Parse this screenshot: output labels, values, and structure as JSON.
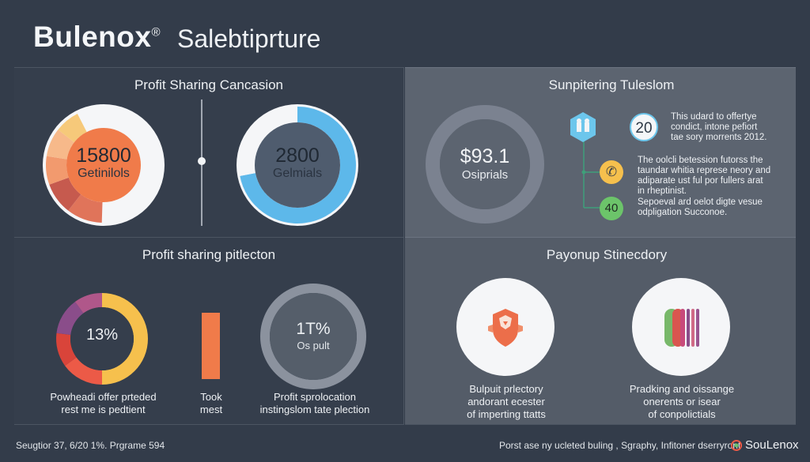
{
  "header": {
    "brand": "Bulenox",
    "registered": "®",
    "subtitle": "Salebtiprture"
  },
  "panels": {
    "profit_sharing_cancasion": {
      "title": "Profit Sharing Cancasion",
      "donut1": {
        "value": "15800",
        "label": "Getinilols"
      },
      "donut2": {
        "value": "2800",
        "label": "Gelmials"
      }
    },
    "sunpitering": {
      "title": "Sunpitering Tuleslom",
      "donut": {
        "value": "$93.1",
        "label": "Osiprials"
      },
      "badge1": {
        "text": "20"
      },
      "badge2": {
        "text": "40"
      },
      "note1": [
        "This udard to offertye",
        "condict, intone pefiort",
        "tae sory morrents 2012."
      ],
      "note2": [
        "The oolcli betession futorss the",
        "taundar whitia represe neory and",
        "adiparate ust ful por fullers arat",
        "in rheptinist."
      ],
      "note3": [
        "Sepoeval ard oelot digte vesue",
        "odpligation Succonoe."
      ]
    },
    "profit_sharing_pitlecton": {
      "title": "Profit sharing pitlecton",
      "donut1": {
        "value": "13%"
      },
      "donut2": {
        "value": "1T%",
        "label": "Os pult"
      },
      "caption1": [
        "Powheadi offer prteded",
        "rest me is pedtient"
      ],
      "caption2": [
        "Took",
        "mest"
      ],
      "caption3": [
        "Profit sprolocation",
        "instingslom tate plection"
      ]
    },
    "payonup": {
      "title": "Payonup Stinecdory",
      "caption1": [
        "Bulpuit prlectory",
        "andorant ecester",
        "of imperting ttatts"
      ],
      "caption2": [
        "Pradking and oissange",
        "onerents or isear",
        "of conpolictials"
      ]
    }
  },
  "footer": {
    "left": "Seugtior 37, 6/20 1%. Prgrame 594",
    "right": "Porst ase ny ucleted buling , Sgraphy, Infitoner dserryront",
    "brand": "SouLenox"
  },
  "colors": {
    "background": "#333c4a",
    "orange": "#f07b4a",
    "blue": "#5db8ea",
    "yellow": "#f6c04d",
    "red": "#ec5a47",
    "purple": "#8a4d8a",
    "gray_ring": "#7b8290"
  },
  "chart_data": [
    {
      "type": "pie",
      "title": "Profit Sharing Cancasion",
      "center_value": "15800",
      "center_label": "Getinilols",
      "series": [
        {
          "values": [
            58,
            10,
            9,
            8,
            8,
            7
          ]
        }
      ]
    },
    {
      "type": "pie",
      "title": "Profit Sharing Cancasion",
      "center_value": "2800",
      "center_label": "Gelmials",
      "series": [
        {
          "values": [
            72,
            28
          ]
        }
      ]
    },
    {
      "type": "pie",
      "title": "Sunpitering Tuleslom",
      "center_value": "$93.1",
      "center_label": "Osiprials",
      "series": [
        {
          "values": [
            100
          ]
        }
      ]
    },
    {
      "type": "pie",
      "title": "Profit sharing pitlecton",
      "center_value": "13%",
      "series": [
        {
          "values": [
            50,
            15,
            12,
            13,
            10
          ]
        }
      ]
    },
    {
      "type": "pie",
      "title": "Profit sharing pitlecton",
      "center_value": "1T%",
      "center_label": "Os pult",
      "series": [
        {
          "values": [
            100
          ]
        }
      ]
    }
  ]
}
